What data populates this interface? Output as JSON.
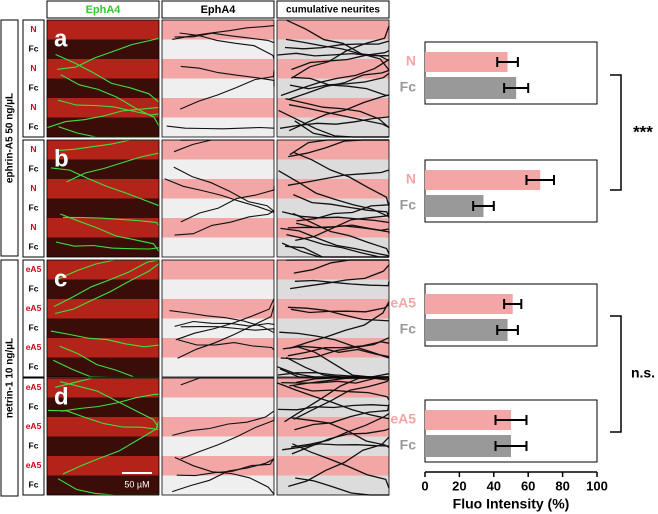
{
  "headers": [
    "EphA4",
    "EphA4",
    "cumulative neurites"
  ],
  "rows": [
    {
      "letter": "a",
      "strips": [
        "N",
        "Fc",
        "N",
        "Fc",
        "N",
        "Fc"
      ]
    },
    {
      "letter": "b",
      "strips": [
        "N",
        "Fc",
        "N",
        "Fc",
        "N",
        "Fc"
      ]
    },
    {
      "letter": "c",
      "strips": [
        "eA5",
        "Fc",
        "eA5",
        "Fc",
        "eA5",
        "Fc"
      ]
    },
    {
      "letter": "d",
      "strips": [
        "eA5",
        "Fc",
        "eA5",
        "Fc",
        "eA5",
        "Fc"
      ]
    }
  ],
  "conditions": [
    "ephrin-A5 50 ng/µL",
    "netrin-1 10 ng/µL"
  ],
  "scale_bar": "50 µM",
  "significance": [
    "***",
    "n.s."
  ],
  "chart_data": [
    {
      "type": "bar",
      "orientation": "horizontal",
      "categories": [
        "N",
        "Fc"
      ],
      "values": [
        48,
        53
      ],
      "errors": [
        6,
        7
      ],
      "colors": [
        "#f4a6a6",
        "#999999"
      ],
      "xlim": [
        0,
        100
      ]
    },
    {
      "type": "bar",
      "orientation": "horizontal",
      "categories": [
        "N",
        "Fc"
      ],
      "values": [
        67,
        34
      ],
      "errors": [
        8,
        6
      ],
      "colors": [
        "#f4a6a6",
        "#999999"
      ],
      "xlim": [
        0,
        100
      ]
    },
    {
      "type": "bar",
      "orientation": "horizontal",
      "categories": [
        "eA5",
        "Fc"
      ],
      "values": [
        51,
        48
      ],
      "errors": [
        5,
        6
      ],
      "colors": [
        "#f4a6a6",
        "#999999"
      ],
      "xlim": [
        0,
        100
      ]
    },
    {
      "type": "bar",
      "orientation": "horizontal",
      "categories": [
        "eA5",
        "Fc"
      ],
      "values": [
        50,
        50
      ],
      "errors": [
        9,
        9
      ],
      "colors": [
        "#f4a6a6",
        "#999999"
      ],
      "xlim": [
        0,
        100
      ],
      "xticks": [
        0,
        20,
        40,
        60,
        80,
        100
      ],
      "xlabel": "Fluo Intensity (%)"
    }
  ]
}
